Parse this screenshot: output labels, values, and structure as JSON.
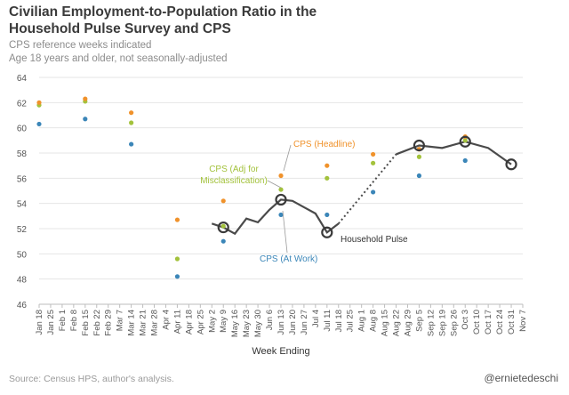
{
  "chart_data": {
    "type": "line",
    "title": "Civilian Employment-to-Population Ratio in the Household Pulse Survey and CPS",
    "subtitles": [
      "CPS reference weeks indicated",
      "Age 18 years and older, not seasonally-adjusted"
    ],
    "xlabel": "Week Ending",
    "ylabel": "",
    "ylim": [
      46,
      64
    ],
    "yticks": [
      46,
      48,
      50,
      52,
      54,
      56,
      58,
      60,
      62,
      64
    ],
    "grid": "horizontal",
    "categories": [
      "Jan 18",
      "Jan 25",
      "Feb 1",
      "Feb 8",
      "Feb 15",
      "Feb 22",
      "Feb 29",
      "Mar 7",
      "Mar 14",
      "Mar 21",
      "Mar 28",
      "Apr 4",
      "Apr 11",
      "Apr 18",
      "Apr 25",
      "May 2",
      "May 9",
      "May 16",
      "May 23",
      "May 30",
      "Jun 6",
      "Jun 13",
      "Jun 20",
      "Jun 27",
      "Jul 4",
      "Jul 11",
      "Jul 18",
      "Jul 25",
      "Aug 1",
      "Aug 8",
      "Aug 15",
      "Aug 22",
      "Aug 29",
      "Sep 5",
      "Sep 12",
      "Sep 19",
      "Sep 26",
      "Oct 3",
      "Oct 10",
      "Oct 17",
      "Oct 24",
      "Oct 31",
      "Nov 7"
    ],
    "series": [
      {
        "name": "Household Pulse",
        "color": "#4a4a4a",
        "points": [
          [
            15,
            52.4
          ],
          [
            16,
            52.1
          ],
          [
            17,
            51.6
          ],
          [
            18,
            52.8
          ],
          [
            19,
            52.5
          ],
          [
            20,
            53.5
          ],
          [
            21,
            54.3
          ],
          [
            22,
            54.2
          ],
          [
            23,
            53.7
          ],
          [
            24,
            53.2
          ],
          [
            25,
            51.7
          ],
          [
            26,
            52.4
          ],
          [
            31,
            57.9
          ],
          [
            33,
            58.6
          ],
          [
            35,
            58.4
          ],
          [
            37,
            58.9
          ],
          [
            39,
            58.4
          ],
          [
            41,
            57.1
          ]
        ],
        "gap": [
          26,
          31
        ]
      },
      {
        "name": "CPS (Headline)",
        "color": "#f0922b",
        "points": [
          [
            0,
            62.0
          ],
          [
            4,
            62.3
          ],
          [
            8,
            61.2
          ],
          [
            12,
            52.7
          ],
          [
            16,
            54.2
          ],
          [
            21,
            56.2
          ],
          [
            25,
            57.0
          ],
          [
            29,
            57.9
          ],
          [
            33,
            58.3
          ],
          [
            37,
            59.3
          ]
        ]
      },
      {
        "name": "CPS (Adj for Misclassification)",
        "color": "#a3c23c",
        "points": [
          [
            0,
            61.8
          ],
          [
            4,
            62.1
          ],
          [
            8,
            60.4
          ],
          [
            12,
            49.6
          ],
          [
            16,
            52.2
          ],
          [
            21,
            55.1
          ],
          [
            25,
            56.0
          ],
          [
            29,
            57.2
          ],
          [
            33,
            57.7
          ],
          [
            37,
            59.0
          ]
        ]
      },
      {
        "name": "CPS (At Work)",
        "color": "#3b86b8",
        "points": [
          [
            0,
            60.3
          ],
          [
            4,
            60.7
          ],
          [
            8,
            58.7
          ],
          [
            12,
            48.2
          ],
          [
            16,
            51.0
          ],
          [
            21,
            53.1
          ],
          [
            25,
            53.1
          ],
          [
            29,
            54.9
          ],
          [
            33,
            56.2
          ],
          [
            37,
            57.4
          ]
        ]
      }
    ],
    "highlighted_points": [
      16,
      21,
      25,
      33,
      37,
      41
    ],
    "annotations": [
      {
        "label": "CPS (Headline)",
        "color": "#f0922b"
      },
      {
        "label": "CPS (Adj for",
        "color": "#a3c23c"
      },
      {
        "label": "Misclassification)",
        "color": "#a3c23c"
      },
      {
        "label": "CPS (At Work)",
        "color": "#3b86b8"
      },
      {
        "label": "Household Pulse",
        "color": "#333333"
      }
    ]
  },
  "footer": {
    "source": "Source: Census HPS, author's analysis.",
    "handle": "@ernietedeschi"
  }
}
